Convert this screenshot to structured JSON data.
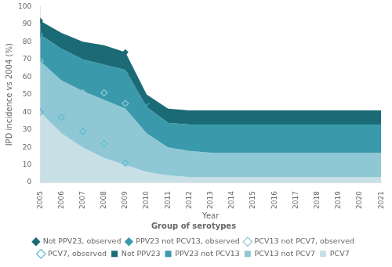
{
  "chart_data": {
    "type": "area",
    "x_label": "Year",
    "y_label": "IPD incidence vs 2004 (%)",
    "legend_title": "Group of serotypes",
    "legend": "bottom",
    "grid": false,
    "x": [
      2005,
      2006,
      2007,
      2008,
      2009,
      2010,
      2011,
      2012,
      2013,
      2014,
      2015,
      2016,
      2017,
      2018,
      2019,
      2020,
      2021
    ],
    "xlim": [
      2005,
      2021
    ],
    "xticks": [
      2005,
      2006,
      2007,
      2008,
      2009,
      2010,
      2011,
      2012,
      2013,
      2014,
      2015,
      2016,
      2017,
      2018,
      2019,
      2020,
      2021
    ],
    "ylim": [
      0,
      100
    ],
    "yticks": [
      0,
      10,
      20,
      30,
      40,
      50,
      60,
      70,
      80,
      90,
      100
    ],
    "series": [
      {
        "name": "Not PPV23",
        "type": "area",
        "color": "#1a6b76",
        "values": [
          92,
          85,
          80,
          78,
          74,
          50,
          42,
          41,
          41,
          41,
          41,
          41,
          41,
          41,
          41,
          41,
          41
        ]
      },
      {
        "name": "PPV23 not PCV13",
        "type": "area",
        "color": "#3a9aab",
        "values": [
          84,
          76,
          70,
          67,
          64,
          43,
          34,
          33,
          33,
          33,
          33,
          33,
          33,
          33,
          33,
          33,
          33
        ]
      },
      {
        "name": "PCV13 not PCV7",
        "type": "area",
        "color": "#8fc8d4",
        "values": [
          69,
          58,
          52,
          47,
          42,
          28,
          20,
          18,
          17,
          17,
          17,
          17,
          17,
          17,
          17,
          17,
          17
        ]
      },
      {
        "name": "PCV7",
        "type": "area",
        "color": "#c8dfe6",
        "values": [
          40,
          28,
          20,
          14,
          10,
          6,
          4,
          3,
          3,
          3,
          3,
          3,
          3,
          3,
          3,
          3,
          3
        ]
      },
      {
        "name": "Not PPV23, observed",
        "type": "scatter",
        "marker": "diamond",
        "color": "#1a6b76",
        "x": [
          2005,
          2006,
          2007,
          2008,
          2009,
          2010
        ],
        "values": [
          92,
          82,
          75,
          72,
          74,
          46
        ]
      },
      {
        "name": "PPV23 not PCV13, observed",
        "type": "scatter",
        "marker": "diamond",
        "color": "#3a9aab",
        "x": [
          2005,
          2006,
          2007,
          2008,
          2009,
          2010
        ],
        "values": [
          84,
          64,
          65,
          62,
          62,
          45
        ]
      },
      {
        "name": "PCV13 not PCV7, observed",
        "type": "scatter",
        "marker": "diamond_open",
        "color": "#8fc8d4",
        "x": [
          2005,
          2006,
          2007,
          2008,
          2009,
          2010
        ],
        "values": [
          69,
          55,
          51,
          51,
          45,
          null
        ]
      },
      {
        "name": "PCV7, observed",
        "type": "scatter",
        "marker": "diamond_open",
        "color": "#5bbccc",
        "x": [
          2005,
          2006,
          2007,
          2008,
          2009,
          2010
        ],
        "values": [
          40,
          37,
          29,
          22,
          11,
          null
        ]
      }
    ]
  }
}
